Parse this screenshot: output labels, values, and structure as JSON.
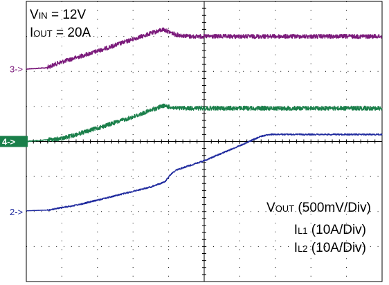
{
  "chart_data": {
    "type": "line",
    "title": "",
    "grid": true,
    "divisions": {
      "x": 10,
      "y": 8
    },
    "annotations": {
      "vin": {
        "main": "V",
        "sub": "IN",
        "rest": " = 12V"
      },
      "iout": {
        "main": "I",
        "sub": "OUT",
        "rest": " = 20A"
      },
      "vout_scale": {
        "main": "V",
        "sub": "OUT",
        "rest": " (500mV/Div)"
      },
      "il1_scale": {
        "main": "I",
        "sub": "L1",
        "rest": " (10A/Div)"
      },
      "il2_scale": {
        "main": "I",
        "sub": "L2",
        "rest": " (10A/Div)"
      }
    },
    "channel_markers": [
      {
        "label": "3->",
        "color": "#7b1a7b",
        "y_div": 1.93,
        "filled": false
      },
      {
        "label": "4->",
        "color": "#1a7f4a",
        "y_div": 4.0,
        "filled": true
      },
      {
        "label": "2->",
        "color": "#1f2a9e",
        "y_div": 6.0,
        "filled": false
      }
    ],
    "series": [
      {
        "color": "#7b1a7b",
        "noise": 0.12,
        "points": [
          [
            0.0,
            1.93
          ],
          [
            0.55,
            1.9
          ],
          [
            0.9,
            1.76
          ],
          [
            2.0,
            1.42
          ],
          [
            3.0,
            1.08
          ],
          [
            3.85,
            0.8
          ],
          [
            4.2,
            0.95
          ],
          [
            4.6,
            1.0
          ],
          [
            10,
            1.0
          ]
        ]
      },
      {
        "color": "#1a7f4a",
        "noise": 0.12,
        "points": [
          [
            0.0,
            4.0
          ],
          [
            1.0,
            3.92
          ],
          [
            2.0,
            3.62
          ],
          [
            3.0,
            3.3
          ],
          [
            3.85,
            2.98
          ],
          [
            4.2,
            3.05
          ],
          [
            4.6,
            3.05
          ],
          [
            10,
            3.05
          ]
        ]
      },
      {
        "color": "#1f2a9e",
        "noise": 0.04,
        "points": [
          [
            0.0,
            5.98
          ],
          [
            0.6,
            5.96
          ],
          [
            1.5,
            5.8
          ],
          [
            2.5,
            5.55
          ],
          [
            3.5,
            5.3
          ],
          [
            3.9,
            5.15
          ],
          [
            4.05,
            4.95
          ],
          [
            4.2,
            4.82
          ],
          [
            5.0,
            4.55
          ],
          [
            6.0,
            4.12
          ],
          [
            6.6,
            3.85
          ],
          [
            6.85,
            3.8
          ],
          [
            10,
            3.8
          ]
        ]
      }
    ]
  }
}
